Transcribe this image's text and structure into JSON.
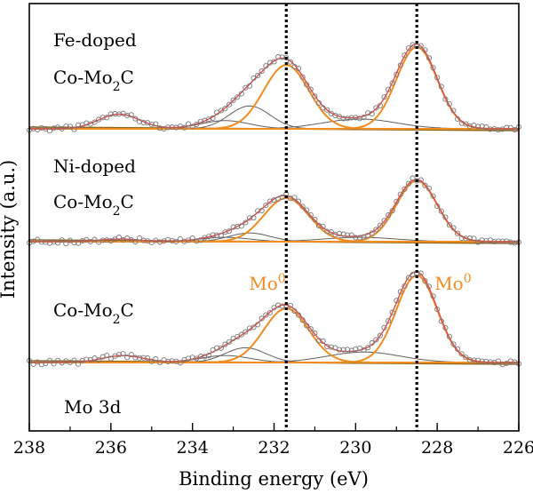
{
  "chart_data": {
    "type": "line",
    "xlabel": "Binding energy (eV)",
    "ylabel": "Intensity (a.u.)",
    "xlim": [
      238,
      226
    ],
    "x_reversed": true,
    "xticks": [
      238,
      236,
      234,
      232,
      230,
      228,
      226
    ],
    "y_ticks_shown": false,
    "reference_lines_x": [
      231.7,
      228.5
    ],
    "label_corner": "Mo 3d",
    "peak_labels": [
      {
        "base": "Mo",
        "sup": "0",
        "x": 231.7
      },
      {
        "base": "Mo",
        "sup": "0",
        "x": 228.5
      }
    ],
    "samples": [
      {
        "name_line1": "Fe-doped",
        "name_line2": "Co-Mo",
        "name_sub": "2",
        "name_tail": "C",
        "background": 0.0,
        "components": [
          {
            "center": 228.5,
            "amplitude": 1.0,
            "width": 0.5,
            "color": "#f28c1f"
          },
          {
            "center": 231.7,
            "amplitude": 0.78,
            "width": 0.55,
            "color": "#f28c1f"
          },
          {
            "center": 229.9,
            "amplitude": 0.12,
            "width": 0.9,
            "color": "#606060"
          },
          {
            "center": 232.6,
            "amplitude": 0.28,
            "width": 0.5,
            "color": "#606060"
          },
          {
            "center": 233.2,
            "amplitude": 0.1,
            "width": 0.6,
            "color": "#606060"
          },
          {
            "center": 235.8,
            "amplitude": 0.18,
            "width": 0.5,
            "color": "#606060"
          }
        ]
      },
      {
        "name_line1": "Ni-doped",
        "name_line2": "Co-Mo",
        "name_sub": "2",
        "name_tail": "C",
        "background": 0.0,
        "components": [
          {
            "center": 228.5,
            "amplitude": 0.7,
            "width": 0.5,
            "color": "#f28c1f"
          },
          {
            "center": 231.7,
            "amplitude": 0.5,
            "width": 0.55,
            "color": "#f28c1f"
          },
          {
            "center": 229.9,
            "amplitude": 0.05,
            "width": 0.9,
            "color": "#606060"
          },
          {
            "center": 232.6,
            "amplitude": 0.1,
            "width": 0.5,
            "color": "#606060"
          },
          {
            "center": 233.2,
            "amplitude": 0.05,
            "width": 0.6,
            "color": "#606060"
          },
          {
            "center": 235.8,
            "amplitude": 0.03,
            "width": 0.5,
            "color": "#606060"
          }
        ]
      },
      {
        "name_line1": "",
        "name_line2": "Co-Mo",
        "name_sub": "2",
        "name_tail": "C",
        "background": 0.0,
        "components": [
          {
            "center": 228.5,
            "amplitude": 1.0,
            "width": 0.5,
            "color": "#f28c1f"
          },
          {
            "center": 231.7,
            "amplitude": 0.62,
            "width": 0.55,
            "color": "#f28c1f"
          },
          {
            "center": 229.8,
            "amplitude": 0.12,
            "width": 0.9,
            "color": "#606060"
          },
          {
            "center": 232.7,
            "amplitude": 0.17,
            "width": 0.5,
            "color": "#606060"
          },
          {
            "center": 233.2,
            "amplitude": 0.08,
            "width": 0.6,
            "color": "#606060"
          },
          {
            "center": 235.7,
            "amplitude": 0.08,
            "width": 0.5,
            "color": "#606060"
          }
        ]
      }
    ],
    "colors": {
      "fit_orange": "#f28c1f",
      "component_gray": "#606060",
      "envelope_red": "#e24a4a",
      "markers": "#777777",
      "background_line": "#8b6a1e",
      "axis": "#000000",
      "label_orange": "#f28c1f"
    }
  }
}
